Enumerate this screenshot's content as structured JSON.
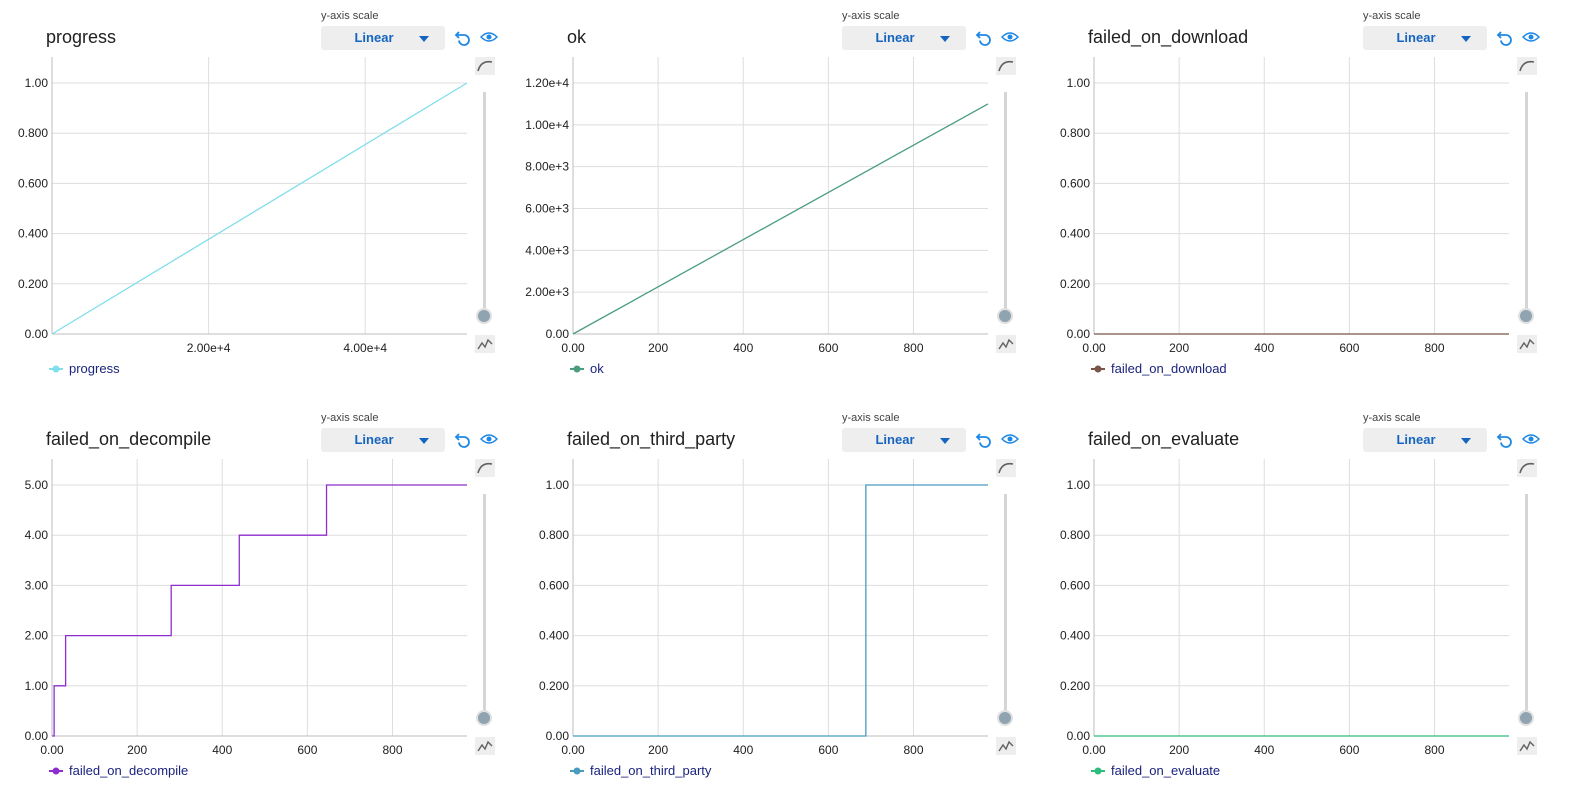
{
  "scale_label": "y-axis scale",
  "scale_value": "Linear",
  "icons": {
    "reset": "reset-icon",
    "visibility": "eye-icon",
    "smooth": "smooth-curve-icon",
    "raw": "raw-line-icon"
  },
  "chart_data": [
    {
      "type": "line",
      "title": "progress",
      "legend": "progress",
      "color": "#80deea",
      "xlim": [
        0,
        53000
      ],
      "ylim": [
        0,
        1.0
      ],
      "xticks": [
        {
          "v": 20000,
          "label": "2.00e+4"
        },
        {
          "v": 40000,
          "label": "4.00e+4"
        }
      ],
      "yticks": [
        {
          "v": 0,
          "label": "0.00"
        },
        {
          "v": 0.2,
          "label": "0.200"
        },
        {
          "v": 0.4,
          "label": "0.400"
        },
        {
          "v": 0.6,
          "label": "0.600"
        },
        {
          "v": 0.8,
          "label": "0.800"
        },
        {
          "v": 1.0,
          "label": "1.00"
        }
      ],
      "series": [
        {
          "x": [
            0,
            53000
          ],
          "y": [
            0,
            1.0
          ]
        }
      ]
    },
    {
      "type": "line",
      "title": "ok",
      "legend": "ok",
      "color": "#4a9d7f",
      "xlim": [
        0,
        975
      ],
      "ylim": [
        0,
        12000
      ],
      "xticks": [
        {
          "v": 0,
          "label": "0.00"
        },
        {
          "v": 200,
          "label": "200"
        },
        {
          "v": 400,
          "label": "400"
        },
        {
          "v": 600,
          "label": "600"
        },
        {
          "v": 800,
          "label": "800"
        }
      ],
      "yticks": [
        {
          "v": 0,
          "label": "0.00"
        },
        {
          "v": 2000,
          "label": "2.00e+3"
        },
        {
          "v": 4000,
          "label": "4.00e+3"
        },
        {
          "v": 6000,
          "label": "6.00e+3"
        },
        {
          "v": 8000,
          "label": "8.00e+3"
        },
        {
          "v": 10000,
          "label": "1.00e+4"
        },
        {
          "v": 12000,
          "label": "1.20e+4"
        }
      ],
      "series": [
        {
          "x": [
            0,
            975
          ],
          "y": [
            0,
            11000
          ]
        }
      ]
    },
    {
      "type": "line",
      "title": "failed_on_download",
      "legend": "failed_on_download",
      "color": "#795548",
      "xlim": [
        0,
        975
      ],
      "ylim": [
        0,
        1.0
      ],
      "xticks": [
        {
          "v": 0,
          "label": "0.00"
        },
        {
          "v": 200,
          "label": "200"
        },
        {
          "v": 400,
          "label": "400"
        },
        {
          "v": 600,
          "label": "600"
        },
        {
          "v": 800,
          "label": "800"
        }
      ],
      "yticks": [
        {
          "v": 0,
          "label": "0.00"
        },
        {
          "v": 0.2,
          "label": "0.200"
        },
        {
          "v": 0.4,
          "label": "0.400"
        },
        {
          "v": 0.6,
          "label": "0.600"
        },
        {
          "v": 0.8,
          "label": "0.800"
        },
        {
          "v": 1.0,
          "label": "1.00"
        }
      ],
      "series": [
        {
          "x": [
            0,
            975
          ],
          "y": [
            0,
            0
          ]
        }
      ]
    },
    {
      "type": "line",
      "title": "failed_on_decompile",
      "legend": "failed_on_decompile",
      "color": "#8e2ecf",
      "xlim": [
        0,
        975
      ],
      "ylim": [
        0,
        5.0
      ],
      "xticks": [
        {
          "v": 0,
          "label": "0.00"
        },
        {
          "v": 200,
          "label": "200"
        },
        {
          "v": 400,
          "label": "400"
        },
        {
          "v": 600,
          "label": "600"
        },
        {
          "v": 800,
          "label": "800"
        }
      ],
      "yticks": [
        {
          "v": 0,
          "label": "0.00"
        },
        {
          "v": 1,
          "label": "1.00"
        },
        {
          "v": 2,
          "label": "2.00"
        },
        {
          "v": 3,
          "label": "3.00"
        },
        {
          "v": 4,
          "label": "4.00"
        },
        {
          "v": 5,
          "label": "5.00"
        }
      ],
      "series": [
        {
          "x": [
            0,
            5,
            5,
            32,
            32,
            280,
            280,
            440,
            440,
            645,
            645,
            975
          ],
          "y": [
            0,
            0,
            1,
            1,
            2,
            2,
            3,
            3,
            4,
            4,
            5,
            5
          ]
        }
      ]
    },
    {
      "type": "line",
      "title": "failed_on_third_party",
      "legend": "failed_on_third_party",
      "color": "#4a9bc0",
      "xlim": [
        0,
        975
      ],
      "ylim": [
        0,
        1.0
      ],
      "xticks": [
        {
          "v": 0,
          "label": "0.00"
        },
        {
          "v": 200,
          "label": "200"
        },
        {
          "v": 400,
          "label": "400"
        },
        {
          "v": 600,
          "label": "600"
        },
        {
          "v": 800,
          "label": "800"
        }
      ],
      "yticks": [
        {
          "v": 0,
          "label": "0.00"
        },
        {
          "v": 0.2,
          "label": "0.200"
        },
        {
          "v": 0.4,
          "label": "0.400"
        },
        {
          "v": 0.6,
          "label": "0.600"
        },
        {
          "v": 0.8,
          "label": "0.800"
        },
        {
          "v": 1.0,
          "label": "1.00"
        }
      ],
      "series": [
        {
          "x": [
            0,
            688,
            688,
            975
          ],
          "y": [
            0,
            0,
            1,
            1
          ]
        }
      ]
    },
    {
      "type": "line",
      "title": "failed_on_evaluate",
      "legend": "failed_on_evaluate",
      "color": "#2ebd7a",
      "xlim": [
        0,
        975
      ],
      "ylim": [
        0,
        1.0
      ],
      "xticks": [
        {
          "v": 0,
          "label": "0.00"
        },
        {
          "v": 200,
          "label": "200"
        },
        {
          "v": 400,
          "label": "400"
        },
        {
          "v": 600,
          "label": "600"
        },
        {
          "v": 800,
          "label": "800"
        }
      ],
      "yticks": [
        {
          "v": 0,
          "label": "0.00"
        },
        {
          "v": 0.2,
          "label": "0.200"
        },
        {
          "v": 0.4,
          "label": "0.400"
        },
        {
          "v": 0.6,
          "label": "0.600"
        },
        {
          "v": 0.8,
          "label": "0.800"
        },
        {
          "v": 1.0,
          "label": "1.00"
        }
      ],
      "series": [
        {
          "x": [
            0,
            975
          ],
          "y": [
            0,
            0
          ]
        }
      ]
    }
  ]
}
